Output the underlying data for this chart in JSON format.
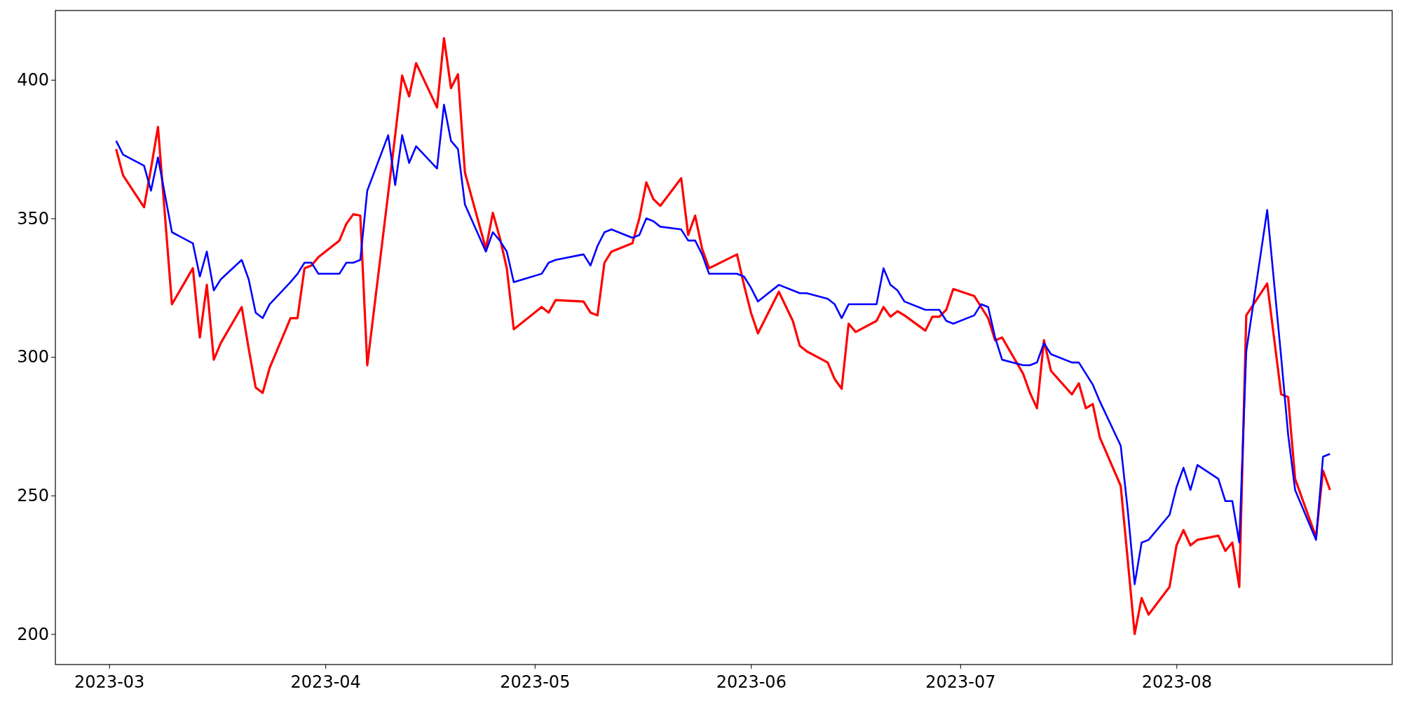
{
  "chart_data": {
    "type": "line",
    "x": [
      "2023-03-02",
      "2023-03-03",
      "2023-03-06",
      "2023-03-07",
      "2023-03-08",
      "2023-03-10",
      "2023-03-13",
      "2023-03-14",
      "2023-03-15",
      "2023-03-16",
      "2023-03-17",
      "2023-03-20",
      "2023-03-21",
      "2023-03-22",
      "2023-03-23",
      "2023-03-24",
      "2023-03-27",
      "2023-03-28",
      "2023-03-29",
      "2023-03-30",
      "2023-03-31",
      "2023-04-03",
      "2023-04-04",
      "2023-04-05",
      "2023-04-06",
      "2023-04-07",
      "2023-04-10",
      "2023-04-11",
      "2023-04-12",
      "2023-04-13",
      "2023-04-14",
      "2023-04-17",
      "2023-04-18",
      "2023-04-19",
      "2023-04-20",
      "2023-04-21",
      "2023-04-24",
      "2023-04-25",
      "2023-04-26",
      "2023-04-27",
      "2023-04-28",
      "2023-05-02",
      "2023-05-03",
      "2023-05-04",
      "2023-05-08",
      "2023-05-09",
      "2023-05-10",
      "2023-05-11",
      "2023-05-12",
      "2023-05-15",
      "2023-05-16",
      "2023-05-17",
      "2023-05-18",
      "2023-05-19",
      "2023-05-22",
      "2023-05-23",
      "2023-05-24",
      "2023-05-25",
      "2023-05-26",
      "2023-05-30",
      "2023-05-31",
      "2023-06-01",
      "2023-06-02",
      "2023-06-05",
      "2023-06-07",
      "2023-06-08",
      "2023-06-09",
      "2023-06-12",
      "2023-06-13",
      "2023-06-14",
      "2023-06-15",
      "2023-06-16",
      "2023-06-19",
      "2023-06-20",
      "2023-06-21",
      "2023-06-22",
      "2023-06-23",
      "2023-06-26",
      "2023-06-27",
      "2023-06-28",
      "2023-06-29",
      "2023-06-30",
      "2023-07-03",
      "2023-07-04",
      "2023-07-05",
      "2023-07-06",
      "2023-07-07",
      "2023-07-10",
      "2023-07-11",
      "2023-07-12",
      "2023-07-13",
      "2023-07-14",
      "2023-07-17",
      "2023-07-18",
      "2023-07-19",
      "2023-07-20",
      "2023-07-21",
      "2023-07-24",
      "2023-07-25",
      "2023-07-26",
      "2023-07-27",
      "2023-07-28",
      "2023-07-31",
      "2023-08-01",
      "2023-08-02",
      "2023-08-03",
      "2023-08-04",
      "2023-08-07",
      "2023-08-08",
      "2023-08-09",
      "2023-08-10",
      "2023-08-11",
      "2023-08-14",
      "2023-08-16",
      "2023-08-17",
      "2023-08-18",
      "2023-08-21",
      "2023-08-22",
      "2023-08-23"
    ],
    "series": [
      {
        "color": "#ff0000",
        "values": [
          375,
          365.5,
          354,
          368,
          383,
          319,
          332,
          307,
          326,
          299,
          305,
          318,
          303,
          289,
          287,
          296,
          314,
          314,
          332,
          333,
          336,
          342,
          348,
          351.5,
          351,
          297,
          359,
          380,
          401.5,
          394,
          406,
          390,
          415,
          397,
          402,
          366.5,
          339,
          352,
          343,
          332,
          310,
          318,
          316,
          320.5,
          320,
          316,
          315,
          334,
          338,
          341,
          350,
          363,
          357,
          354.5,
          364.5,
          344,
          351,
          339,
          332,
          337,
          326,
          316,
          308.5,
          323.5,
          313,
          304,
          302,
          298,
          292,
          288.5,
          312,
          309,
          313,
          318,
          314.5,
          316.5,
          315,
          309.5,
          314.5,
          314.5,
          317,
          324.5,
          322,
          318,
          314,
          306,
          307,
          294,
          287,
          281.5,
          306,
          295,
          286.5,
          290.5,
          281.5,
          283,
          271,
          253.5,
          227,
          200,
          213,
          207,
          217,
          232,
          237.5,
          232,
          234,
          235.5,
          230,
          233,
          217,
          315,
          326.5,
          286.5,
          285.5,
          256,
          235,
          259,
          252
        ]
      },
      {
        "color": "#0000ff",
        "values": [
          378,
          373,
          369,
          360,
          372,
          345,
          341,
          329,
          338,
          324,
          328,
          335,
          328,
          316,
          314,
          319,
          327,
          330,
          334,
          334,
          330,
          330,
          334,
          334,
          335,
          360,
          380,
          362,
          380,
          370,
          376,
          368,
          391,
          378,
          375,
          355,
          338,
          345,
          342,
          338,
          327,
          330,
          334,
          335,
          337,
          333,
          340,
          345,
          346,
          343,
          344,
          350,
          349,
          347,
          346,
          342,
          342,
          337,
          330,
          330,
          329,
          325,
          320,
          326,
          324,
          323,
          323,
          321,
          319,
          314,
          319,
          319,
          319,
          332,
          326,
          324,
          320,
          317,
          317,
          317,
          313,
          312,
          315,
          319,
          318,
          307,
          299,
          297,
          297,
          298,
          305,
          301,
          298,
          298,
          294,
          290,
          284,
          268,
          245,
          218,
          233,
          234,
          243,
          253,
          260,
          252,
          261,
          256,
          248,
          248,
          233,
          302,
          353,
          300,
          272,
          252,
          234,
          264,
          265
        ]
      }
    ],
    "xlim": [
      "2023-02-21T07:00",
      "2023-08-31T22:00"
    ],
    "xticks": [
      "2023-03",
      "2023-04",
      "2023-05",
      "2023-06",
      "2023-07",
      "2023-08"
    ],
    "ylim": [
      189,
      425
    ],
    "yticks": [
      200,
      250,
      300,
      350,
      400
    ]
  }
}
